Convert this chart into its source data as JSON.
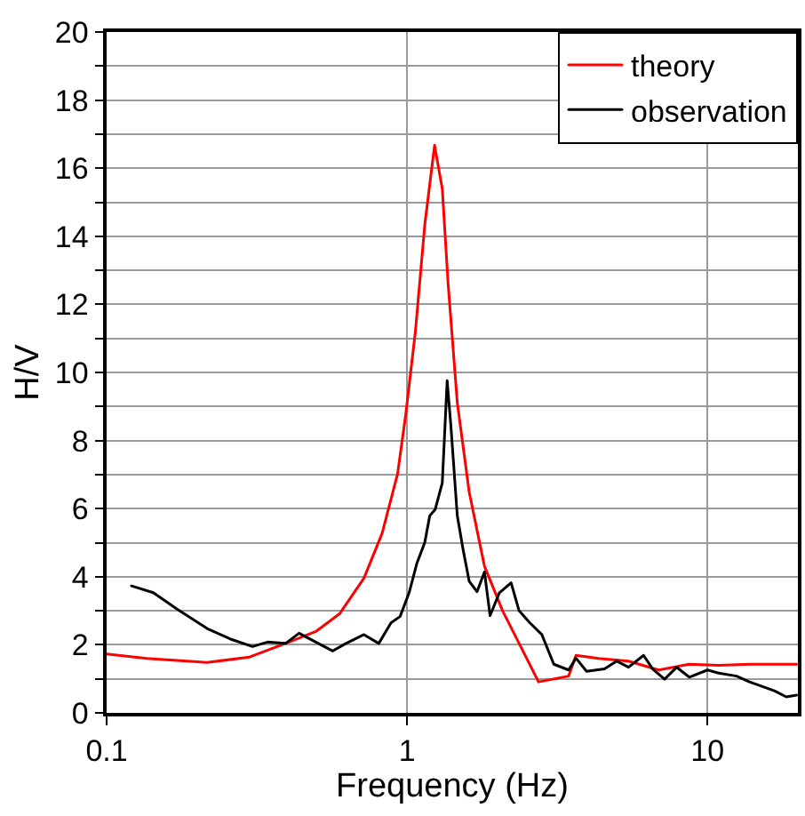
{
  "chart_data": {
    "type": "line",
    "xlabel": "Frequency (Hz)",
    "ylabel": "H/V",
    "log": "x",
    "xlim": [
      0.1,
      20
    ],
    "xticks": [
      0.1,
      1,
      10
    ],
    "ylim": [
      0,
      20
    ],
    "yticks": [
      0,
      {
        "value": 1,
        "label": null
      },
      2,
      {
        "value": 3,
        "label": null
      },
      4,
      {
        "value": 5,
        "label": null
      },
      6,
      {
        "value": 7,
        "label": null
      },
      8,
      {
        "value": 9,
        "label": null
      },
      10,
      {
        "value": 11,
        "label": null
      },
      12,
      {
        "value": 13,
        "label": null
      },
      14,
      {
        "value": 15,
        "label": null
      },
      16,
      {
        "value": 17,
        "label": null
      },
      18,
      {
        "value": 19,
        "label": null
      },
      20
    ],
    "grid": true,
    "legend": "top right",
    "marker": "none",
    "line_style": "solid",
    "series": [
      {
        "name": "theory",
        "color": "#ff0000",
        "x": [
          0.1,
          0.136,
          0.216,
          0.299,
          0.394,
          0.497,
          0.596,
          0.719,
          0.826,
          0.93,
          0.99,
          1.066,
          1.146,
          1.235,
          1.31,
          1.37,
          1.47,
          1.61,
          1.81,
          2.08,
          2.39,
          2.74,
          3.45,
          3.65,
          4.34,
          5.46,
          6.88,
          8.7,
          10.9,
          13.8,
          19.8
        ],
        "values": [
          1.73,
          1.6,
          1.48,
          1.64,
          2.04,
          2.39,
          2.91,
          3.96,
          5.27,
          7.02,
          8.76,
          11.2,
          14.35,
          16.67,
          15.4,
          12.6,
          9.11,
          6.49,
          4.31,
          3.0,
          1.95,
          0.91,
          1.08,
          1.69,
          1.6,
          1.52,
          1.26,
          1.43,
          1.4,
          1.43,
          1.43
        ]
      },
      {
        "name": "observation",
        "color": "#000000",
        "x": [
          0.121,
          0.143,
          0.172,
          0.216,
          0.26,
          0.306,
          0.343,
          0.394,
          0.437,
          0.497,
          0.566,
          0.626,
          0.719,
          0.805,
          0.885,
          0.948,
          1.016,
          1.079,
          1.146,
          1.19,
          1.24,
          1.31,
          1.36,
          1.4,
          1.47,
          1.54,
          1.61,
          1.71,
          1.81,
          1.89,
          2.03,
          2.22,
          2.36,
          2.56,
          2.81,
          3.08,
          3.45,
          3.65,
          3.96,
          4.54,
          4.99,
          5.46,
          6.13,
          6.57,
          7.2,
          7.9,
          8.7,
          10.0,
          10.9,
          12.5,
          13.8,
          16.7,
          18.3,
          19.8
        ],
        "values": [
          3.73,
          3.53,
          3.04,
          2.48,
          2.16,
          1.95,
          2.08,
          2.04,
          2.34,
          2.08,
          1.82,
          2.04,
          2.3,
          2.04,
          2.65,
          2.83,
          3.53,
          4.4,
          5.01,
          5.79,
          5.97,
          6.75,
          9.76,
          8.41,
          5.79,
          4.75,
          3.87,
          3.56,
          4.14,
          2.86,
          3.53,
          3.82,
          3.0,
          2.65,
          2.3,
          1.43,
          1.26,
          1.61,
          1.22,
          1.29,
          1.52,
          1.34,
          1.69,
          1.29,
          0.99,
          1.34,
          1.05,
          1.26,
          1.17,
          1.08,
          0.91,
          0.65,
          0.47,
          0.52
        ]
      }
    ]
  }
}
